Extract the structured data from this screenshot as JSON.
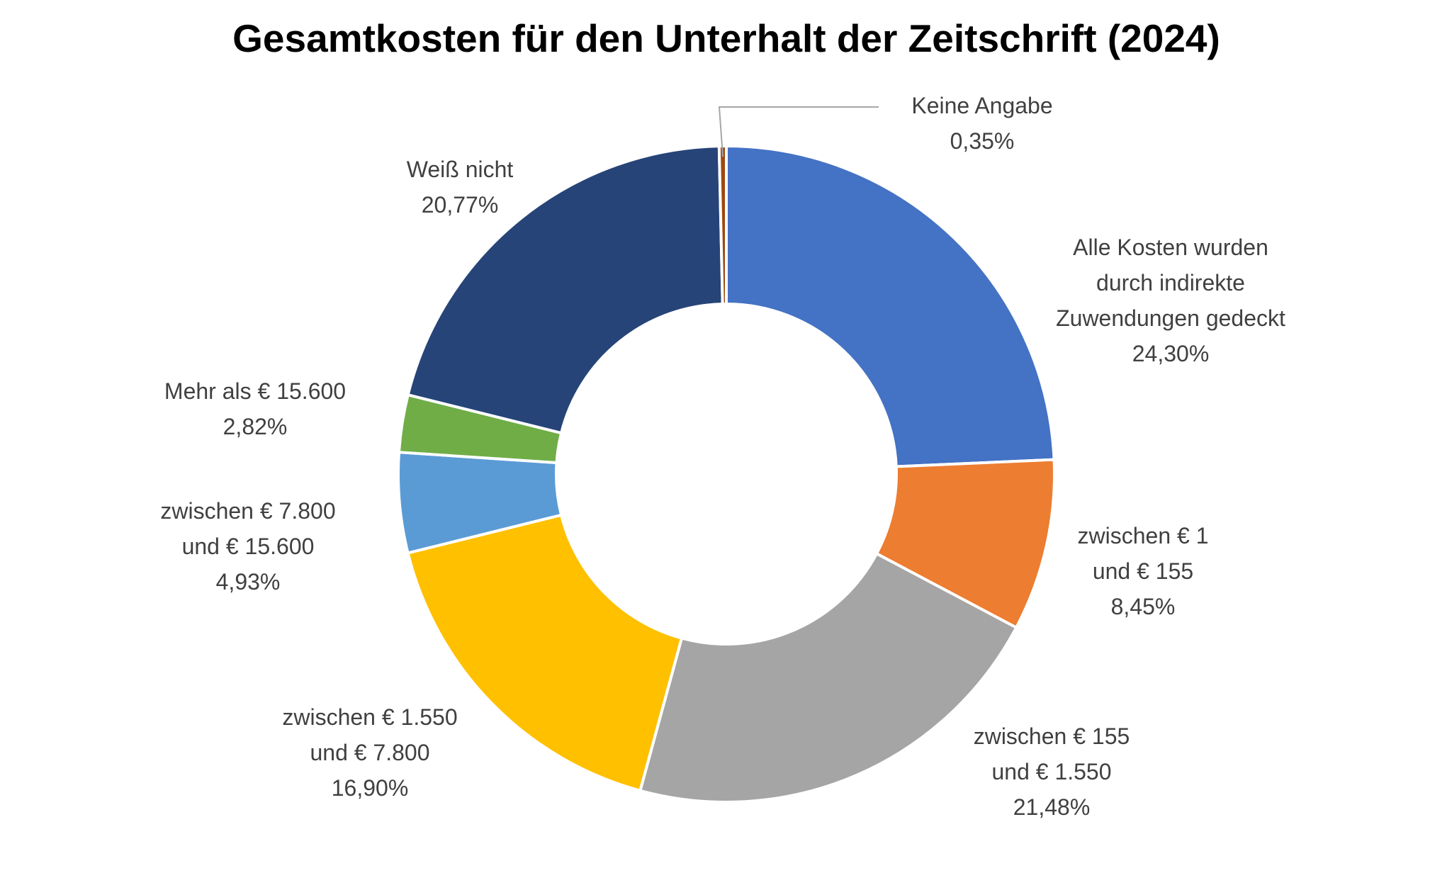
{
  "chart_data": {
    "type": "pie",
    "variant": "donut",
    "title": "Gesamtkosten für den Unterhalt der Zeitschrift (2024)",
    "start": "12 o'clock",
    "direction": "clockwise",
    "value_unit": "percent",
    "slices": [
      {
        "label_lines": [
          "Alle Kosten wurden",
          "durch indirekte",
          "Zuwendungen gedeckt"
        ],
        "value": 24.3,
        "value_label": "24,30%",
        "color": "#4472C4"
      },
      {
        "label_lines": [
          "zwischen € 1",
          "und € 155"
        ],
        "value": 8.45,
        "value_label": "8,45%",
        "color": "#ED7D31"
      },
      {
        "label_lines": [
          "zwischen € 155",
          "und € 1.550"
        ],
        "value": 21.48,
        "value_label": "21,48%",
        "color": "#A5A5A5"
      },
      {
        "label_lines": [
          "zwischen € 1.550",
          "und € 7.800"
        ],
        "value": 16.9,
        "value_label": "16,90%",
        "color": "#FFC000"
      },
      {
        "label_lines": [
          "zwischen € 7.800",
          "und €  15.600"
        ],
        "value": 4.93,
        "value_label": "4,93%",
        "color": "#5B9BD5"
      },
      {
        "label_lines": [
          "Mehr als € 15.600"
        ],
        "value": 2.82,
        "value_label": "2,82%",
        "color": "#70AD47"
      },
      {
        "label_lines": [
          "Weiß nicht"
        ],
        "value": 20.77,
        "value_label": "20,77%",
        "color": "#264478"
      },
      {
        "label_lines": [
          "Keine Angabe"
        ],
        "value": 0.35,
        "value_label": "0,35%",
        "color": "#9E480E",
        "leader_line": true
      }
    ],
    "legend": "none",
    "data_labels": "outside"
  }
}
